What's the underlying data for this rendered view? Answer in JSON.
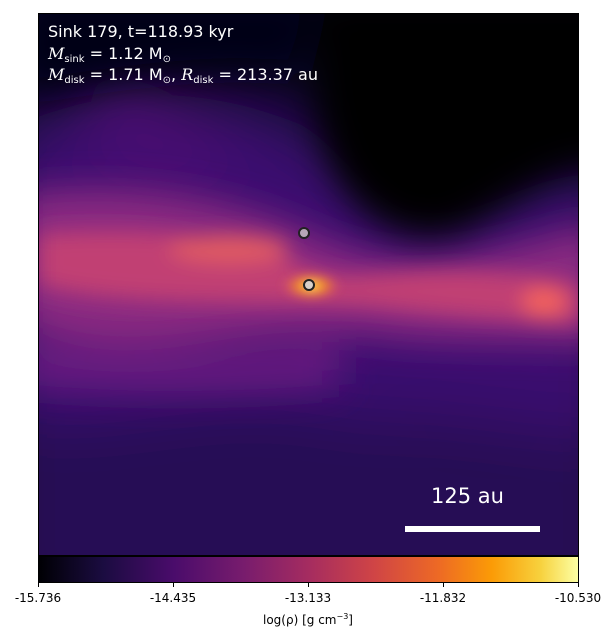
{
  "annotation": {
    "line1": "Sink 179, t=118.93 kyr",
    "m_sink_symbol": "M",
    "m_sink_sub": "sink",
    "m_sink_value": " = 1.12 M",
    "m_sun_sub": "⊙",
    "m_disk_symbol": "M",
    "m_disk_sub": "disk",
    "m_disk_value": " = 1.71 M",
    "r_disk_symbol": "R",
    "r_disk_sub": "disk",
    "r_disk_value": " = 213.37 au"
  },
  "scale_bar": {
    "label": "125 au"
  },
  "colorbar": {
    "colormap": "inferno",
    "ticks": [
      "-15.736",
      "-14.435",
      "-13.133",
      "-11.832",
      "-10.530"
    ],
    "label_prefix": "log(ρ) [g cm",
    "label_exp": "−3",
    "label_suffix": "]"
  },
  "sinks": [
    {
      "name": "sink-upper",
      "fill": "#b8a8b8"
    },
    {
      "name": "sink-central",
      "fill": "#d8d0c8"
    }
  ],
  "colors": {
    "background_low": "#000004",
    "purple": "#3b0f70",
    "magenta": "#8c2981",
    "orange": "#f1605d",
    "yellow": "#fcfdbf"
  }
}
